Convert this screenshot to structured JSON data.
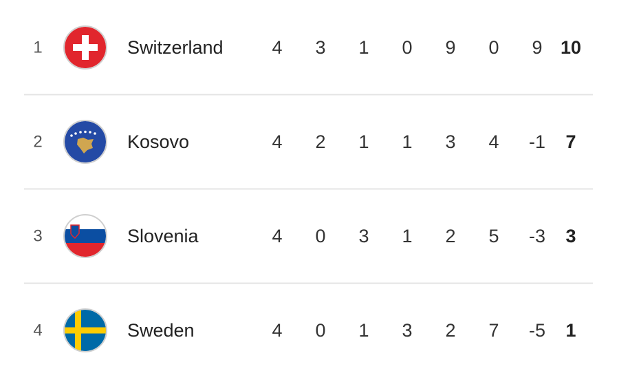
{
  "table": {
    "rows": [
      {
        "rank": 1,
        "team": "Switzerland",
        "stats": [
          4,
          3,
          1,
          0,
          9,
          0,
          9
        ],
        "points": 10
      },
      {
        "rank": 2,
        "team": "Kosovo",
        "stats": [
          4,
          2,
          1,
          1,
          3,
          4,
          -1
        ],
        "points": 7
      },
      {
        "rank": 3,
        "team": "Slovenia",
        "stats": [
          4,
          0,
          3,
          1,
          2,
          5,
          -3
        ],
        "points": 3
      },
      {
        "rank": 4,
        "team": "Sweden",
        "stats": [
          4,
          0,
          1,
          3,
          2,
          7,
          -5
        ],
        "points": 1
      }
    ]
  }
}
